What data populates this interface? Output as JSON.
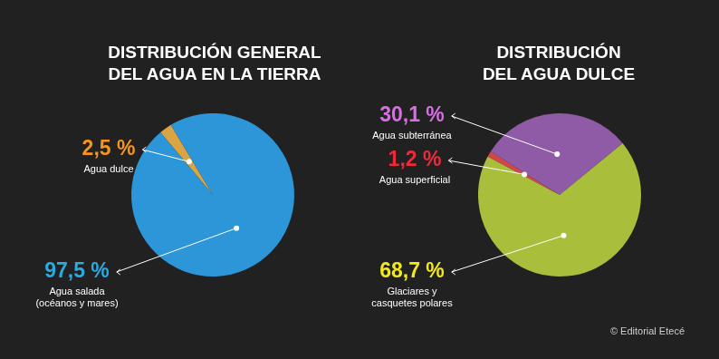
{
  "chart_data": [
    {
      "type": "pie",
      "title": "DISTRIBUCIÓN GENERAL\nDEL AGUA EN LA TIERRA",
      "categories": [
        "Agua dulce",
        "Agua salada\n(océanos y mares)"
      ],
      "values": [
        2.5,
        97.5
      ],
      "value_labels": [
        "2,5 %",
        "97,5 %"
      ],
      "colors": [
        "#d9a441",
        "#2d96d8"
      ],
      "data_labels": true
    },
    {
      "type": "pie",
      "title": "DISTRIBUCIÓN\nDEL AGUA DULCE",
      "categories": [
        "Agua superficial",
        "Agua subterránea",
        "Glaciares y\ncasquetes polares"
      ],
      "values": [
        1.2,
        30.1,
        68.7
      ],
      "value_labels": [
        "1,2 %",
        "30,1 %",
        "68,7 %"
      ],
      "colors": [
        "#d2464a",
        "#8f5aa6",
        "#a9bf3c"
      ],
      "data_labels": true
    }
  ],
  "source": "© Editorial Etecé"
}
